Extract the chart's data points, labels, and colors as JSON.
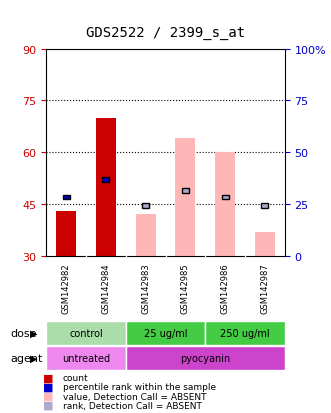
{
  "title": "GDS2522 / 2399_s_at",
  "samples": [
    "GSM142982",
    "GSM142984",
    "GSM142983",
    "GSM142985",
    "GSM142986",
    "GSM142987"
  ],
  "left_axis": {
    "min": 30,
    "max": 90,
    "ticks": [
      30,
      45,
      60,
      75,
      90
    ]
  },
  "right_axis": {
    "min": 0,
    "max": 100,
    "ticks": [
      0,
      25,
      50,
      75,
      100
    ]
  },
  "grid_lines": [
    45,
    60,
    75
  ],
  "bars": {
    "red_value": [
      43,
      70,
      null,
      null,
      null,
      null
    ],
    "pink_value": [
      null,
      null,
      42,
      64,
      60,
      37
    ],
    "blue_rank": [
      47,
      52,
      null,
      null,
      null,
      null
    ],
    "lightblue_rank": [
      null,
      null,
      44.5,
      49,
      47,
      44.5
    ]
  },
  "bar_bottom": 30,
  "bar_width": 0.6,
  "dose_groups": [
    {
      "label": "control",
      "cols": [
        0,
        1
      ],
      "color": "#90EE90"
    },
    {
      "label": "25 ug/ml",
      "cols": [
        2,
        3
      ],
      "color": "#00CC00"
    },
    {
      "label": "250 ug/ml",
      "cols": [
        4,
        5
      ],
      "color": "#00CC00"
    }
  ],
  "agent_groups": [
    {
      "label": "untreated",
      "cols": [
        0,
        1
      ],
      "color": "#FF66FF"
    },
    {
      "label": "pyocyanin",
      "cols": [
        2,
        3,
        4,
        5
      ],
      "color": "#CC44CC"
    }
  ],
  "dose_label": "dose",
  "agent_label": "agent",
  "legend": [
    {
      "color": "#CC0000",
      "label": "count"
    },
    {
      "color": "#0000CC",
      "label": "percentile rank within the sample"
    },
    {
      "color": "#FFB6C1",
      "label": "value, Detection Call = ABSENT"
    },
    {
      "color": "#AAAADD",
      "label": "rank, Detection Call = ABSENT"
    }
  ],
  "left_axis_color": "#CC0000",
  "right_axis_color": "#0000CC",
  "title_color": "#000000",
  "background_color": "#FFFFFF",
  "plot_bg_color": "#FFFFFF",
  "grid_color": "#000000"
}
